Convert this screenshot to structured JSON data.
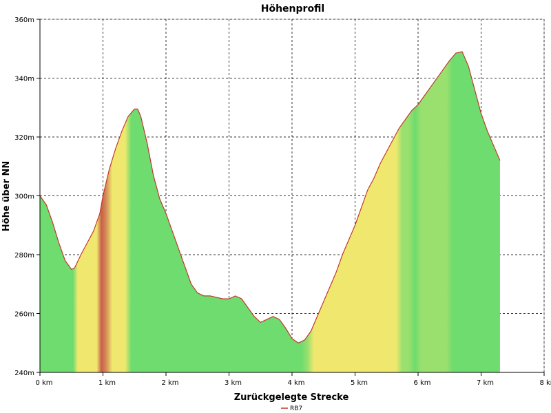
{
  "chart_data": {
    "type": "area",
    "title": "Höhenprofil",
    "xlabel": "Zurückgelegte Strecke",
    "ylabel": "Höhe über NN",
    "xlim": [
      0,
      8
    ],
    "ylim": [
      240,
      360
    ],
    "x_ticks": [
      0,
      1,
      2,
      3,
      4,
      5,
      6,
      7,
      8
    ],
    "x_tick_labels": [
      "0 km",
      "1 km",
      "2 km",
      "3 km",
      "4 km",
      "5 km",
      "6 km",
      "7 km",
      "8 km"
    ],
    "y_ticks": [
      240,
      260,
      280,
      300,
      320,
      340,
      360
    ],
    "y_tick_labels": [
      "240m",
      "260m",
      "280m",
      "300m",
      "320m",
      "340m",
      "360m"
    ],
    "grid": true,
    "legend_position": "bottom-center",
    "series": [
      {
        "name": "RB7",
        "color": "#c0392b",
        "x": [
          0,
          0.1,
          0.2,
          0.3,
          0.4,
          0.5,
          0.55,
          0.65,
          0.75,
          0.85,
          0.95,
          1.0,
          1.1,
          1.2,
          1.3,
          1.4,
          1.5,
          1.55,
          1.6,
          1.7,
          1.8,
          1.9,
          2.0,
          2.1,
          2.2,
          2.3,
          2.4,
          2.5,
          2.6,
          2.7,
          2.8,
          2.9,
          3.0,
          3.1,
          3.2,
          3.3,
          3.4,
          3.5,
          3.6,
          3.7,
          3.8,
          3.9,
          4.0,
          4.1,
          4.2,
          4.3,
          4.4,
          4.5,
          4.6,
          4.7,
          4.8,
          4.9,
          5.0,
          5.1,
          5.2,
          5.3,
          5.4,
          5.5,
          5.6,
          5.7,
          5.8,
          5.9,
          6.0,
          6.1,
          6.2,
          6.3,
          6.4,
          6.5,
          6.6,
          6.7,
          6.8,
          6.9,
          7.0,
          7.1,
          7.2,
          7.3
        ],
        "values": [
          300,
          297,
          291,
          284,
          278,
          275,
          275.5,
          280,
          284,
          288,
          294,
          300,
          309,
          316,
          322,
          327,
          329.5,
          329.5,
          327,
          318,
          307,
          299,
          294,
          288,
          282,
          276,
          270,
          267,
          266,
          266,
          265.5,
          265,
          265,
          266,
          265,
          262,
          259,
          257,
          258,
          259,
          258,
          255,
          251.5,
          250,
          251,
          254,
          259,
          264,
          269,
          274,
          280,
          285,
          290,
          296,
          302,
          306,
          311,
          315,
          319,
          323,
          326,
          329,
          331,
          334,
          337,
          340,
          343,
          346,
          348.5,
          349,
          344,
          336,
          328,
          322,
          317,
          312
        ]
      }
    ]
  }
}
